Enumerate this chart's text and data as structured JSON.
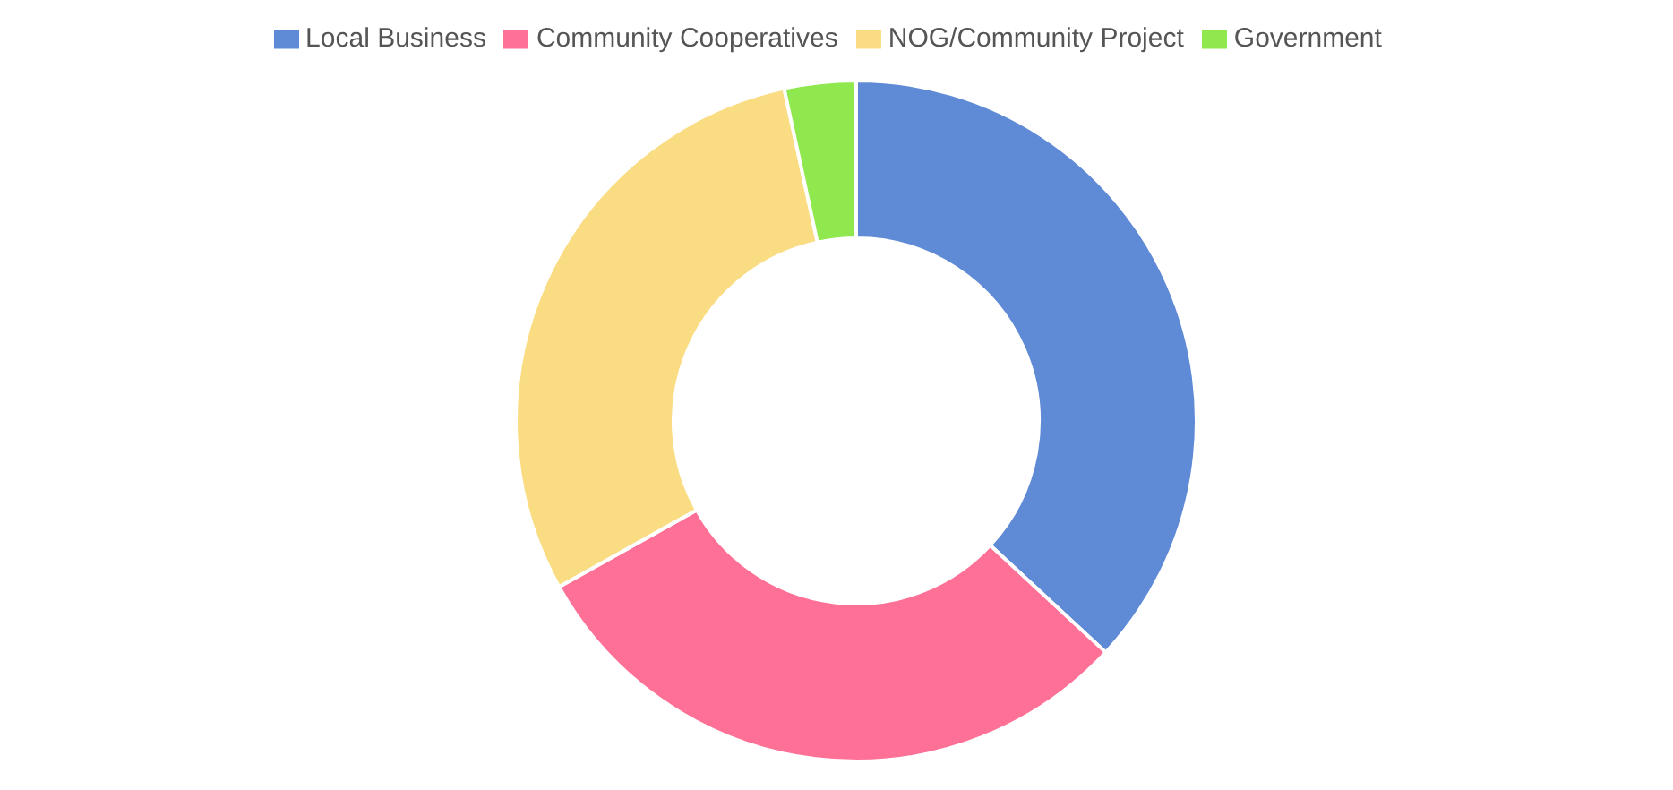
{
  "chart_data": {
    "type": "donut",
    "categories": [
      "Local Business",
      "Community Cooperatives",
      "NOG/Community Project",
      "Government"
    ],
    "values": [
      36.9,
      30,
      29.7,
      3.4
    ],
    "colors": [
      "#5f8ad6",
      "#fe7096",
      "#fadd82",
      "#8fe84e"
    ],
    "legend": "top"
  }
}
